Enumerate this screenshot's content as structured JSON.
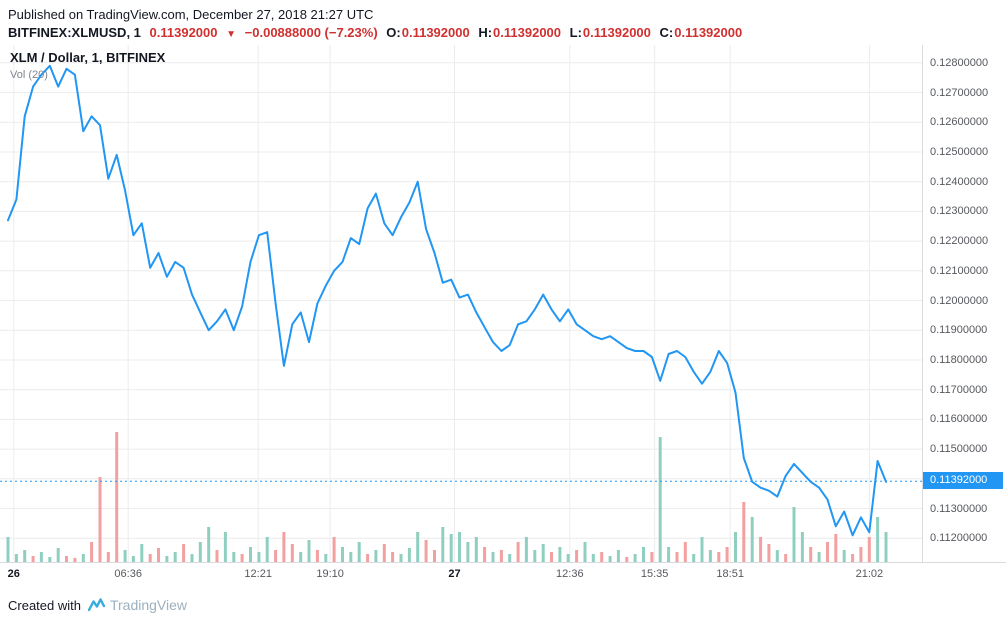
{
  "header": {
    "published_line": "Published on TradingView.com, December 27, 2018 21:27 UTC",
    "symbol": "BITFINEX:XLMUSD, 1",
    "last_price": "0.11392000",
    "direction_arrow": "▼",
    "change_text": "−0.00888000 (−7.23%)",
    "ohlc": [
      {
        "label": "O:",
        "value": "0.11392000"
      },
      {
        "label": "H:",
        "value": "0.11392000"
      },
      {
        "label": "L:",
        "value": "0.11392000"
      },
      {
        "label": "C:",
        "value": "0.11392000"
      }
    ]
  },
  "chart": {
    "legend_title": "XLM / Dollar, 1, BITFINEX",
    "legend_indicator": "Vol (20)",
    "price_badge": "0.11392000",
    "colors": {
      "line": "#2196f3",
      "badge_bg": "#2196f3",
      "volume_up": "#8fcfc0",
      "volume_down": "#f2a0a0",
      "grid": "#ececec",
      "axis_text": "#55585e",
      "down_red": "#d03030",
      "header_text": "#131722",
      "brand_blue": "#38acdd",
      "brand_gray": "#9cb0bf"
    }
  },
  "footer": {
    "created_with": "Created with",
    "brand": "TradingView"
  },
  "chart_data": {
    "type": "line",
    "title": "XLM / Dollar, 1, BITFINEX",
    "symbol": "BITFINEX:XLMUSD",
    "exchange": "BITFINEX",
    "interval": "1",
    "timestamp": "December 27, 2018 21:27 UTC",
    "open": 0.11392,
    "high": 0.11392,
    "low": 0.11392,
    "close": 0.11392,
    "change": -0.00888,
    "change_pct": -7.23,
    "last_price": 0.11392,
    "legend": [
      "Vol (20)"
    ],
    "y_axis": {
      "min": 0.1112,
      "max": 0.1286,
      "tick_step": 0.001,
      "tick_decimals": 8,
      "ticks": [
        0.128,
        0.127,
        0.126,
        0.125,
        0.124,
        0.123,
        0.122,
        0.121,
        0.12,
        0.119,
        0.118,
        0.117,
        0.116,
        0.115,
        0.114,
        0.113,
        0.112
      ],
      "hidden_tick": 0.114
    },
    "x_axis": {
      "labels": [
        {
          "label": "26",
          "pos": 0.015,
          "bold": true
        },
        {
          "label": "06:36",
          "pos": 0.139
        },
        {
          "label": "12:21",
          "pos": 0.28
        },
        {
          "label": "19:10",
          "pos": 0.358
        },
        {
          "label": "27",
          "pos": 0.493,
          "bold": true
        },
        {
          "label": "12:36",
          "pos": 0.618
        },
        {
          "label": "15:35",
          "pos": 0.71
        },
        {
          "label": "18:51",
          "pos": 0.792
        },
        {
          "label": "21:02",
          "pos": 0.943
        }
      ]
    },
    "prices": [
      0.1227,
      0.1234,
      0.1262,
      0.1272,
      0.1276,
      0.1279,
      0.1272,
      0.1278,
      0.1276,
      0.1257,
      0.1262,
      0.1259,
      0.1241,
      0.1249,
      0.1237,
      0.1222,
      0.1226,
      0.1211,
      0.1216,
      0.1208,
      0.1213,
      0.1211,
      0.1202,
      0.1196,
      0.119,
      0.1193,
      0.1197,
      0.119,
      0.1198,
      0.1213,
      0.1222,
      0.1223,
      0.1199,
      0.1178,
      0.1192,
      0.1196,
      0.1186,
      0.1199,
      0.1205,
      0.121,
      0.1213,
      0.1221,
      0.1219,
      0.1231,
      0.1236,
      0.1226,
      0.1222,
      0.1228,
      0.1233,
      0.124,
      0.1224,
      0.1216,
      0.1206,
      0.1207,
      0.1201,
      0.1202,
      0.1196,
      0.1191,
      0.1186,
      0.1183,
      0.1185,
      0.1192,
      0.1193,
      0.1197,
      0.1202,
      0.1197,
      0.1193,
      0.1197,
      0.1192,
      0.119,
      0.1188,
      0.1187,
      0.1188,
      0.1186,
      0.1184,
      0.1183,
      0.1183,
      0.1181,
      0.1173,
      0.1182,
      0.1183,
      0.1181,
      0.1176,
      0.1172,
      0.1176,
      0.1183,
      0.1179,
      0.1169,
      0.1147,
      0.1139,
      0.1137,
      0.1136,
      0.1134,
      0.1141,
      0.1145,
      0.1142,
      0.1139,
      0.1137,
      0.1133,
      0.1124,
      0.1129,
      0.1121,
      0.1127,
      0.1122,
      0.1146,
      0.1139
    ],
    "volume": {
      "values": [
        25,
        8,
        12,
        6,
        10,
        5,
        14,
        6,
        4,
        8,
        20,
        85,
        10,
        130,
        12,
        6,
        18,
        8,
        14,
        6,
        10,
        18,
        8,
        20,
        35,
        12,
        30,
        10,
        8,
        15,
        10,
        25,
        12,
        30,
        18,
        10,
        22,
        12,
        8,
        25,
        15,
        10,
        20,
        8,
        12,
        18,
        10,
        8,
        14,
        30,
        22,
        12,
        35,
        28,
        30,
        20,
        25,
        15,
        10,
        12,
        8,
        20,
        25,
        12,
        18,
        10,
        15,
        8,
        12,
        20,
        8,
        10,
        6,
        12,
        5,
        8,
        15,
        10,
        125,
        15,
        10,
        20,
        8,
        25,
        12,
        10,
        15,
        30,
        60,
        45,
        25,
        18,
        12,
        8,
        55,
        30,
        15,
        10,
        20,
        28,
        12,
        8,
        15,
        25,
        45,
        30
      ],
      "colors": [
        "g",
        "g",
        "g",
        "r",
        "g",
        "g",
        "g",
        "r",
        "r",
        "g",
        "r",
        "r",
        "r",
        "r",
        "g",
        "g",
        "g",
        "r",
        "r",
        "g",
        "g",
        "r",
        "g",
        "g",
        "g",
        "r",
        "g",
        "g",
        "r",
        "g",
        "g",
        "g",
        "r",
        "r",
        "r",
        "g",
        "g",
        "r",
        "g",
        "r",
        "g",
        "g",
        "g",
        "r",
        "g",
        "r",
        "r",
        "g",
        "g",
        "g",
        "r",
        "r",
        "g",
        "g",
        "g",
        "g",
        "g",
        "r",
        "g",
        "r",
        "g",
        "r",
        "g",
        "g",
        "g",
        "r",
        "g",
        "g",
        "r",
        "g",
        "g",
        "r",
        "g",
        "g",
        "r",
        "g",
        "g",
        "r",
        "g",
        "g",
        "r",
        "r",
        "g",
        "g",
        "g",
        "r",
        "r",
        "g",
        "r",
        "g",
        "r",
        "r",
        "g",
        "r",
        "g",
        "g",
        "r",
        "g",
        "r",
        "r",
        "g",
        "r",
        "r",
        "r",
        "g",
        "g"
      ]
    }
  }
}
